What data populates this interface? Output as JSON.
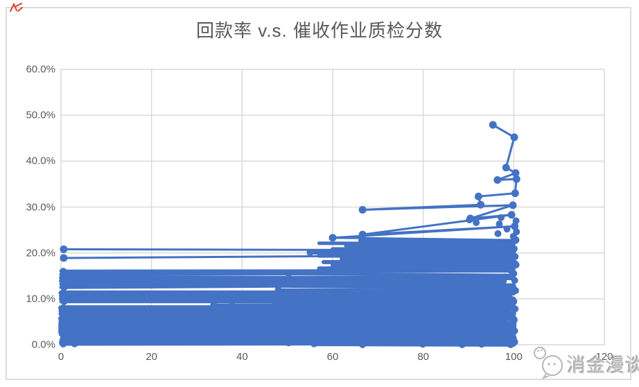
{
  "window": {
    "background": "#ffffff"
  },
  "icons": {
    "red_mark": "red-scribble-icon",
    "watermark_logo": "chat-bubble-face-icon"
  },
  "watermark": {
    "text": "消金漫谈"
  },
  "chart_data": {
    "type": "scatter",
    "title": "回款率 v.s. 催收作业质检分数",
    "xlabel": "",
    "ylabel": "",
    "xlim": [
      0,
      120
    ],
    "ylim_percent": [
      0,
      60
    ],
    "grid": true,
    "legend": "none",
    "series_color": "#4472C4",
    "grid_color": "#d9d9d9",
    "axis_text_color": "#595959",
    "x_ticks": [
      0,
      20,
      40,
      60,
      80,
      100,
      120
    ],
    "y_tick_labels": [
      "60.0%",
      "50.0%",
      "40.0%",
      "30.0%",
      "20.0%",
      "10.0%",
      "0.0%"
    ],
    "top_polyline": [
      [
        95.4,
        47.9
      ],
      [
        100.1,
        45.2
      ],
      [
        98.3,
        38.6
      ],
      [
        100.4,
        37.4
      ],
      [
        96.4,
        35.9
      ],
      [
        100.6,
        36.1
      ],
      [
        100.3,
        33.0
      ],
      [
        92.2,
        32.3
      ],
      [
        92.7,
        30.5
      ],
      [
        66.6,
        29.4
      ],
      [
        99.8,
        30.4
      ],
      [
        90.4,
        27.5
      ],
      [
        99.5,
        28.3
      ],
      [
        66.6,
        24.0
      ],
      [
        100.2,
        25.8
      ],
      [
        60.0,
        23.3
      ],
      [
        100.4,
        22.8
      ]
    ],
    "long_lines": [
      [
        0.6,
        20.8,
        80.5,
        20.6
      ],
      [
        0.6,
        18.9,
        75.0,
        19.4
      ]
    ],
    "band_segments": [
      [
        0,
        16.0,
        100,
        16.1,
        5
      ],
      [
        0,
        15.3,
        50.3,
        15.5,
        5
      ],
      [
        50.3,
        15.5,
        99,
        15.1,
        5
      ],
      [
        0,
        14.6,
        100,
        14.5,
        6
      ],
      [
        0,
        13.9,
        98,
        13.8,
        6
      ],
      [
        0,
        13.2,
        30.2,
        13.1,
        5
      ],
      [
        30.2,
        13.1,
        100,
        13.0,
        5
      ],
      [
        0,
        12.5,
        47.9,
        12.8,
        5
      ],
      [
        47.9,
        12.8,
        100,
        12.3,
        5
      ],
      [
        48,
        11.9,
        100,
        11.8,
        5
      ],
      [
        0,
        11.3,
        100,
        11.3,
        7
      ],
      [
        0,
        10.6,
        99,
        10.6,
        6
      ],
      [
        0,
        10.0,
        100,
        10.0,
        6
      ],
      [
        0,
        9.4,
        47.3,
        9.4,
        5
      ],
      [
        47.3,
        9.4,
        100,
        9.3,
        6
      ],
      [
        33.7,
        8.6,
        37.8,
        8.6,
        5
      ],
      [
        37.8,
        8.6,
        100,
        8.7,
        5
      ],
      [
        0,
        8.0,
        100,
        8.0,
        8
      ],
      [
        0,
        7.3,
        99,
        7.4,
        7
      ],
      [
        0,
        6.7,
        100,
        6.8,
        7
      ],
      [
        28,
        6.2,
        100,
        6.2,
        5
      ],
      [
        0,
        5.7,
        100,
        5.8,
        8
      ],
      [
        0,
        5.1,
        98,
        5.0,
        7
      ],
      [
        0,
        4.5,
        100,
        4.6,
        8
      ],
      [
        0,
        3.9,
        100,
        4.0,
        8
      ],
      [
        0,
        3.3,
        99,
        3.4,
        8
      ],
      [
        0,
        2.7,
        100,
        2.8,
        8
      ],
      [
        0,
        2.2,
        100,
        2.1,
        6
      ],
      [
        35,
        1.8,
        100,
        1.8,
        5
      ],
      [
        0.6,
        1.5,
        100,
        1.6,
        6
      ],
      [
        0,
        1.0,
        22.6,
        1.1,
        5
      ],
      [
        22.6,
        1.1,
        100,
        1.0,
        7
      ],
      [
        0,
        0.5,
        50.3,
        0.6,
        6
      ],
      [
        50.3,
        0.6,
        100,
        0.4,
        7
      ],
      [
        0,
        0.15,
        55.9,
        0.2,
        5
      ],
      [
        55.9,
        0.2,
        100,
        0.1,
        7
      ],
      [
        57,
        16.6,
        100,
        16.7,
        6
      ],
      [
        60,
        17.3,
        100,
        17.2,
        6
      ],
      [
        58,
        18.0,
        100.5,
        17.9,
        6
      ],
      [
        62,
        18.7,
        100,
        18.6,
        6
      ],
      [
        57,
        19.4,
        100,
        19.5,
        6
      ],
      [
        55,
        20.1,
        100,
        20.2,
        6
      ],
      [
        60,
        20.8,
        100,
        20.7,
        6
      ],
      [
        63,
        21.5,
        100,
        21.4,
        6
      ],
      [
        57,
        22.1,
        100,
        22.0,
        5
      ],
      [
        66,
        22.7,
        100,
        22.6,
        5
      ]
    ],
    "cluster_points": [
      [
        97.2,
        27.7
      ],
      [
        100.5,
        27.0
      ],
      [
        96.8,
        26.3
      ],
      [
        98.5,
        25.2
      ],
      [
        100.6,
        24.6
      ],
      [
        96.5,
        24.2
      ],
      [
        99.9,
        23.6
      ],
      [
        97.5,
        22.2
      ],
      [
        99.2,
        21.8
      ],
      [
        100.1,
        20.9
      ],
      [
        96.2,
        20.4
      ],
      [
        99.6,
        19.8
      ],
      [
        100.3,
        19.2
      ],
      [
        97.0,
        18.6
      ],
      [
        99.0,
        18.0
      ],
      [
        100.5,
        17.4
      ],
      [
        96.7,
        16.8
      ],
      [
        99.3,
        16.2
      ],
      [
        100.0,
        15.5
      ],
      [
        98.0,
        14.8
      ],
      [
        100.2,
        14.0
      ],
      [
        96.4,
        13.3
      ],
      [
        99.8,
        12.6
      ],
      [
        100.4,
        11.8
      ],
      [
        97.8,
        11.0
      ],
      [
        99.1,
        10.2
      ],
      [
        100.0,
        9.4
      ],
      [
        98.3,
        8.6
      ],
      [
        100.3,
        7.8
      ],
      [
        96.9,
        7.0
      ],
      [
        99.5,
        6.2
      ],
      [
        100.1,
        5.4
      ],
      [
        97.3,
        4.6
      ],
      [
        99.7,
        3.8
      ],
      [
        100.2,
        3.0
      ],
      [
        98.6,
        2.2
      ],
      [
        99.9,
        1.4
      ],
      [
        100.2,
        0.6
      ],
      [
        90.2,
        27.2
      ],
      [
        91.7,
        26.6
      ]
    ],
    "left_points": [
      [
        0.6,
        20.8
      ],
      [
        0.6,
        18.9
      ],
      [
        0.5,
        16.0
      ],
      [
        0.7,
        15.3
      ],
      [
        0.5,
        14.6
      ],
      [
        0.6,
        13.9
      ],
      [
        0.5,
        13.2
      ],
      [
        0.7,
        12.5
      ],
      [
        0.5,
        11.3
      ],
      [
        0.6,
        10.6
      ],
      [
        0.5,
        10.0
      ],
      [
        0.7,
        9.4
      ],
      [
        0.5,
        8.0
      ],
      [
        0.6,
        7.3
      ],
      [
        0.5,
        6.7
      ],
      [
        0.6,
        5.7
      ],
      [
        0.5,
        5.1
      ],
      [
        0.7,
        4.5
      ],
      [
        0.5,
        3.9
      ],
      [
        0.6,
        3.3
      ],
      [
        0.5,
        2.7
      ],
      [
        0.6,
        2.2
      ],
      [
        0.6,
        1.5
      ],
      [
        0.5,
        1.0
      ],
      [
        0.6,
        0.5
      ],
      [
        0.5,
        0.15
      ]
    ],
    "mid_points": [
      [
        30.2,
        13.1
      ],
      [
        47.9,
        12.8
      ],
      [
        50.3,
        15.5
      ],
      [
        47.3,
        9.4
      ],
      [
        33.7,
        8.6
      ],
      [
        37.8,
        8.6
      ],
      [
        28.0,
        6.2
      ],
      [
        35.0,
        1.8
      ],
      [
        48.0,
        11.9
      ],
      [
        66.6,
        29.4
      ],
      [
        66.6,
        24.0
      ],
      [
        60.0,
        23.3
      ],
      [
        55.0,
        20.1
      ],
      [
        22.6,
        1.1
      ]
    ],
    "bottom_points": [
      [
        79.9,
        0.1
      ],
      [
        88.6,
        0.0
      ],
      [
        92.9,
        0.1
      ],
      [
        99.3,
        0.0
      ],
      [
        66.6,
        0.0
      ],
      [
        55.9,
        0.2
      ],
      [
        50.3,
        0.4
      ],
      [
        32.7,
        1.4
      ],
      [
        3.0,
        0.2
      ]
    ]
  }
}
